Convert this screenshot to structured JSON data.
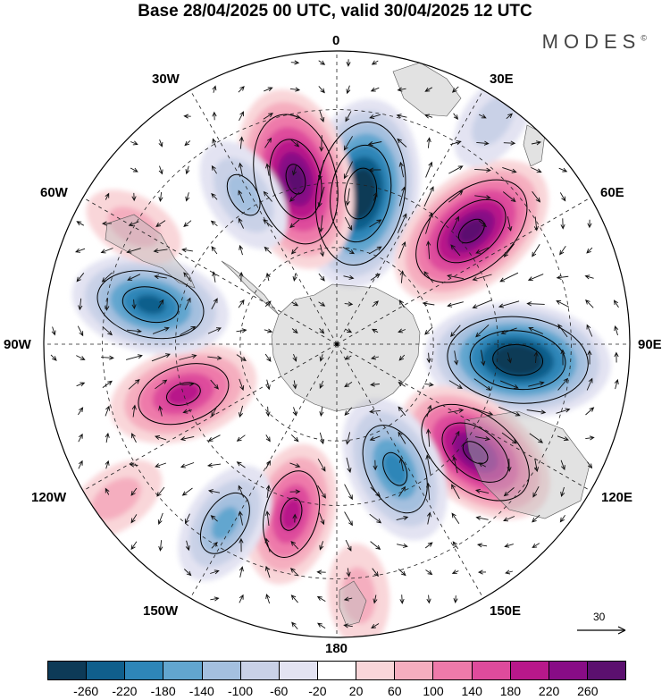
{
  "title": "Base 28/04/2025 00 UTC, valid 30/04/2025 12 UTC",
  "brand": "MODES",
  "brand_mark": "©",
  "longitude_labels": {
    "top": "0",
    "bottom": "180",
    "left": "90W",
    "right": "90E",
    "30W": "30W",
    "30E": "30E",
    "60W": "60W",
    "60E": "60E",
    "120W": "120W",
    "120E": "120E",
    "150W": "150W",
    "150E": "150E"
  },
  "reference_vector_label": "30",
  "colorbar": {
    "colors": [
      "#0d3a57",
      "#105f8c",
      "#2e86b8",
      "#62a6cf",
      "#a4c0df",
      "#c9d1e7",
      "#e3e3f2",
      "#ffffff",
      "#f9d6d9",
      "#f5aebf",
      "#ee7aaa",
      "#de4b9c",
      "#b8188a",
      "#880c86",
      "#5b106f"
    ],
    "labels": [
      "-260",
      "-220",
      "-180",
      "-140",
      "-100",
      "-60",
      "-20",
      "20",
      "60",
      "100",
      "140",
      "180",
      "220",
      "260"
    ]
  },
  "anomaly_centers": [
    {
      "lon": 9,
      "colat": 0.52,
      "value": -280
    },
    {
      "lon": -14,
      "colat": 0.58,
      "value": 260
    },
    {
      "lon": 50,
      "colat": 0.6,
      "value": 250
    },
    {
      "lon": 95,
      "colat": 0.62,
      "value": -270
    },
    {
      "lon": 128,
      "colat": 0.6,
      "value": 230
    },
    {
      "lon": 155,
      "colat": 0.47,
      "value": -180
    },
    {
      "lon": -165,
      "colat": 0.6,
      "value": 160
    },
    {
      "lon": -148,
      "colat": 0.72,
      "value": -120
    },
    {
      "lon": -108,
      "colat": 0.55,
      "value": 180
    },
    {
      "lon": -78,
      "colat": 0.65,
      "value": -200
    },
    {
      "lon": -32,
      "colat": 0.6,
      "value": -100
    },
    {
      "lon": -60,
      "colat": 0.8,
      "value": 60
    },
    {
      "lon": 35,
      "colat": 0.93,
      "value": -60
    },
    {
      "lon": 175,
      "colat": 0.86,
      "value": 60
    },
    {
      "lon": -125,
      "colat": 0.92,
      "value": 60
    }
  ]
}
